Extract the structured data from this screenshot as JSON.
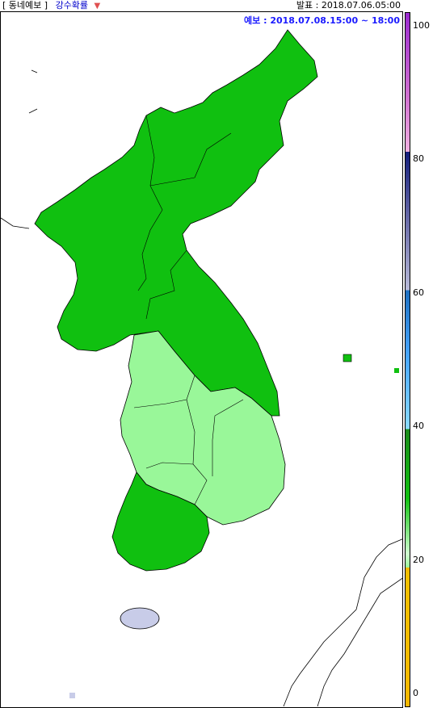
{
  "header": {
    "category": "[ 동네예보 ]",
    "variable": "강수확률",
    "dropdown_icon": "triangle-down-icon",
    "issued": "발표 : 2018.07.06.05:00"
  },
  "map": {
    "valid_time": "예보 : 2018.07.08.15:00 ~ 18:00",
    "regions": [
      {
        "name": "north-korea",
        "value_range": "30-40"
      },
      {
        "name": "gangwon",
        "value_range": "30-40"
      },
      {
        "name": "gyeonggi-chungcheong-gyeongsang",
        "value_range": "20-30"
      },
      {
        "name": "jeolla-south",
        "value_range": "30-40"
      },
      {
        "name": "jeju",
        "value_range": "60-70"
      }
    ]
  },
  "legend": {
    "labels": [
      "100",
      "80",
      "60",
      "40",
      "20",
      "0"
    ],
    "colors": {
      "0-20": "#f5b800",
      "20-30": "#99f799",
      "30-40": "#10c010",
      "40-50": "#1a8a1a",
      "50-60": "#9adcff",
      "60-70": "#c8cce8",
      "80-90": "#131d7a",
      "90-100": "#9a2ad0"
    }
  }
}
